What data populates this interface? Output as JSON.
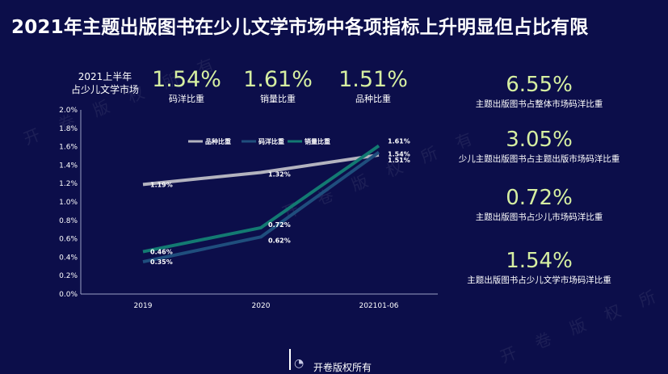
{
  "header": {
    "title": "2021年主题出版图书在少儿文学市场中各项指标上升明显但占比有限"
  },
  "watermark": {
    "text": "开 卷 版 权 所 有"
  },
  "market": {
    "label_line1": "2021上半年",
    "label_line2": "占少儿文学市场"
  },
  "top_stats": [
    {
      "value": "1.54%",
      "label": "码洋比重"
    },
    {
      "value": "1.61%",
      "label": "销量比重"
    },
    {
      "value": "1.51%",
      "label": "品种比重"
    }
  ],
  "right_stats": [
    {
      "value": "6.55%",
      "label": "主题出版图书占整体市场码洋比重"
    },
    {
      "value": "3.05%",
      "label": "少儿主题出版图书占主题出版市场码洋比重"
    },
    {
      "value": "0.72%",
      "label": "主题出版图书占少儿市场码洋比重"
    },
    {
      "value": "1.54%",
      "label": "主题出版图书占少儿文学市场码洋比重"
    }
  ],
  "footer": {
    "text": "开卷版权所有"
  },
  "chart_data": {
    "type": "line",
    "categories": [
      "2019",
      "2020",
      "202101-06"
    ],
    "y_ticks": [
      "0.0%",
      "0.2%",
      "0.4%",
      "0.6%",
      "0.8%",
      "1.0%",
      "1.2%",
      "1.4%",
      "1.6%",
      "1.8%",
      "2.0%"
    ],
    "ylim": [
      0,
      2.0
    ],
    "legend_position": "top-center",
    "grid": false,
    "series": [
      {
        "name": "品种比重",
        "color": "#b3b3bf",
        "values": [
          1.19,
          1.32,
          1.51
        ],
        "labels": [
          "1.19%",
          "1.32%",
          "1.51%"
        ]
      },
      {
        "name": "码洋比重",
        "color": "#1f4e7d",
        "values": [
          0.35,
          0.62,
          1.54
        ],
        "labels": [
          "0.35%",
          "0.62%",
          "1.54%"
        ]
      },
      {
        "name": "销量比重",
        "color": "#137a72",
        "values": [
          0.46,
          0.72,
          1.61
        ],
        "labels": [
          "0.46%",
          "0.72%",
          "1.61%"
        ]
      }
    ]
  }
}
